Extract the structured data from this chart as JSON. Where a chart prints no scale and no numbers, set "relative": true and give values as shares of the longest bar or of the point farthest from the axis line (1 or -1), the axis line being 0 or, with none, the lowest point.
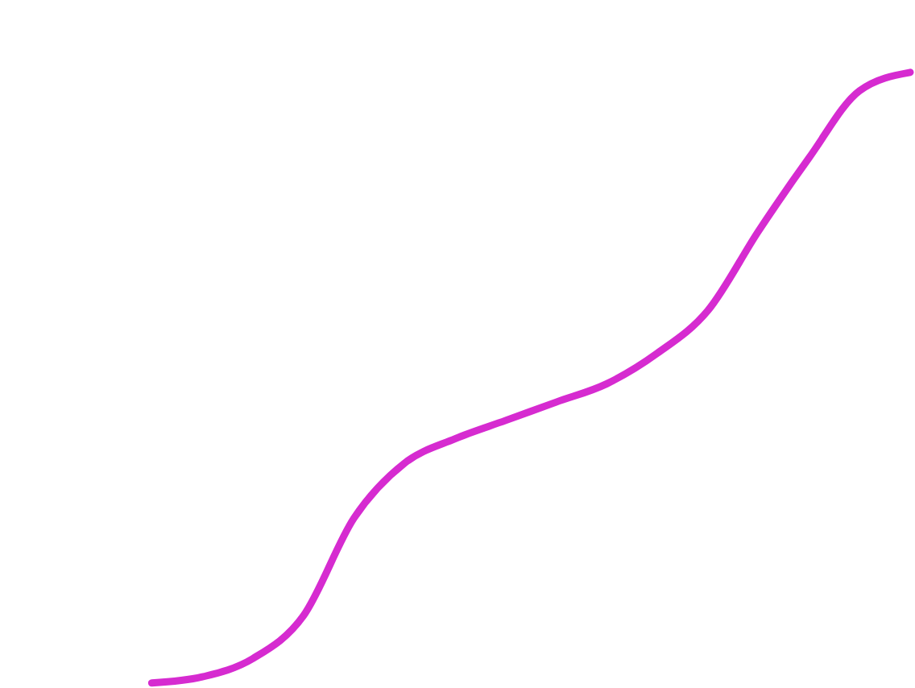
{
  "chart_data": {
    "type": "line",
    "relative": true,
    "categories": [
      null,
      null,
      null,
      null,
      null,
      null,
      null,
      null,
      null,
      null,
      null,
      null,
      null,
      null,
      null,
      null,
      null,
      null,
      null
    ],
    "series": [
      {
        "color": "#d62bd0",
        "values": [
          null,
          null,
          null,
          0,
          0.01,
          0.04,
          0.11,
          0.27,
          0.36,
          0.4,
          0.43,
          0.46,
          0.49,
          0.54,
          0.61,
          0.74,
          0.86,
          0.97,
          1
        ]
      }
    ]
  }
}
